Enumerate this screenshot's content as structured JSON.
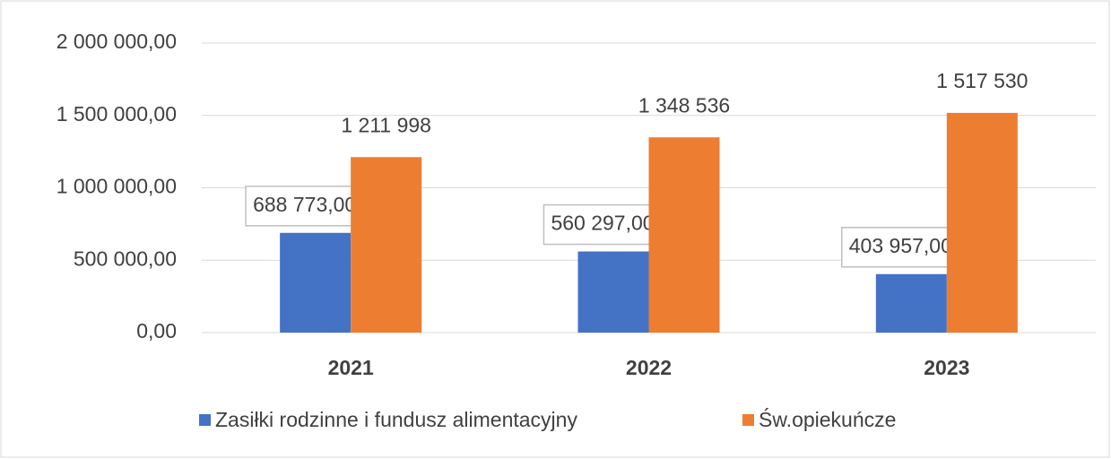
{
  "chart_data": {
    "type": "bar",
    "categories": [
      "2021",
      "2022",
      "2023"
    ],
    "series": [
      {
        "name": "Zasiłki rodzinne i fundusz alimentacyjny",
        "color": "#4472c4",
        "values": [
          688773,
          560297,
          403957
        ],
        "value_labels": [
          "688 773,00",
          "560 297,00",
          "403 957,00"
        ]
      },
      {
        "name": "Św.opiekuńcze",
        "color": "#ed7d31",
        "values": [
          1211998,
          1348536,
          1517530
        ],
        "value_labels": [
          "1 211 998",
          "1 348 536",
          "1 517 530"
        ]
      }
    ],
    "ylim": [
      0,
      2000000
    ],
    "yticks": [
      {
        "value": 0,
        "label": "0,00"
      },
      {
        "value": 500000,
        "label": "500 000,00"
      },
      {
        "value": 1000000,
        "label": "1 000 000,00"
      },
      {
        "value": 1500000,
        "label": "1 500 000,00"
      },
      {
        "value": 2000000,
        "label": "2 000 000,00"
      }
    ],
    "grid": true
  }
}
